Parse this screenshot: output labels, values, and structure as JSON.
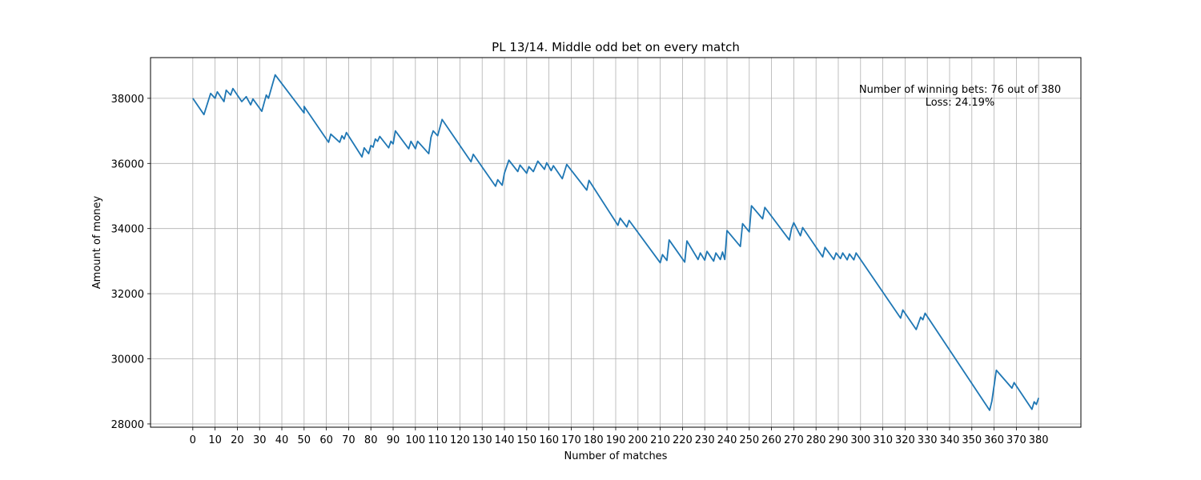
{
  "chart_data": {
    "type": "line",
    "title": "PL 13/14. Middle odd bet on every match",
    "xlabel": "Number of matches",
    "ylabel": "Amount of money",
    "xlim": [
      -19,
      399
    ],
    "ylim": [
      27900,
      39250
    ],
    "x_ticks": [
      0,
      10,
      20,
      30,
      40,
      50,
      60,
      70,
      80,
      90,
      100,
      110,
      120,
      130,
      140,
      150,
      160,
      170,
      180,
      190,
      200,
      210,
      220,
      230,
      240,
      250,
      260,
      270,
      280,
      290,
      300,
      310,
      320,
      330,
      340,
      350,
      360,
      370,
      380
    ],
    "y_ticks": [
      28000,
      30000,
      32000,
      34000,
      36000,
      38000
    ],
    "grid": true,
    "series": [
      {
        "color": "#1f77b4",
        "points": [
          [
            0,
            38000
          ],
          [
            5,
            37500
          ],
          [
            8,
            38150
          ],
          [
            10,
            38000
          ],
          [
            11,
            38200
          ],
          [
            14,
            37900
          ],
          [
            15,
            38250
          ],
          [
            17,
            38100
          ],
          [
            18,
            38300
          ],
          [
            22,
            37900
          ],
          [
            24,
            38050
          ],
          [
            26,
            37800
          ],
          [
            27,
            37980
          ],
          [
            31,
            37600
          ],
          [
            33,
            38100
          ],
          [
            34,
            38000
          ],
          [
            37,
            38720
          ],
          [
            50,
            37550
          ],
          [
            50,
            37750
          ],
          [
            61,
            36650
          ],
          [
            62,
            36900
          ],
          [
            66,
            36650
          ],
          [
            67,
            36850
          ],
          [
            68,
            36750
          ],
          [
            69,
            36950
          ],
          [
            76,
            36200
          ],
          [
            77,
            36480
          ],
          [
            79,
            36300
          ],
          [
            80,
            36550
          ],
          [
            81,
            36500
          ],
          [
            82,
            36750
          ],
          [
            83,
            36680
          ],
          [
            84,
            36830
          ],
          [
            88,
            36480
          ],
          [
            89,
            36680
          ],
          [
            90,
            36600
          ],
          [
            91,
            37000
          ],
          [
            97,
            36450
          ],
          [
            98,
            36680
          ],
          [
            100,
            36450
          ],
          [
            101,
            36680
          ],
          [
            106,
            36300
          ],
          [
            107,
            36800
          ],
          [
            108,
            37000
          ],
          [
            110,
            36850
          ],
          [
            112,
            37350
          ],
          [
            125,
            36050
          ],
          [
            126,
            36280
          ],
          [
            136,
            35300
          ],
          [
            137,
            35500
          ],
          [
            139,
            35330
          ],
          [
            140,
            35700
          ],
          [
            142,
            36100
          ],
          [
            146,
            35750
          ],
          [
            147,
            35950
          ],
          [
            150,
            35700
          ],
          [
            151,
            35900
          ],
          [
            153,
            35750
          ],
          [
            155,
            36070
          ],
          [
            158,
            35820
          ],
          [
            159,
            36020
          ],
          [
            161,
            35780
          ],
          [
            162,
            35930
          ],
          [
            166,
            35530
          ],
          [
            168,
            35970
          ],
          [
            177,
            35180
          ],
          [
            178,
            35480
          ],
          [
            191,
            34100
          ],
          [
            192,
            34320
          ],
          [
            195,
            34050
          ],
          [
            196,
            34250
          ],
          [
            210,
            32950
          ],
          [
            211,
            33200
          ],
          [
            213,
            33020
          ],
          [
            214,
            33650
          ],
          [
            221,
            32970
          ],
          [
            222,
            33620
          ],
          [
            227,
            33050
          ],
          [
            228,
            33250
          ],
          [
            230,
            33030
          ],
          [
            231,
            33300
          ],
          [
            234,
            33000
          ],
          [
            235,
            33250
          ],
          [
            237,
            33050
          ],
          [
            238,
            33280
          ],
          [
            239,
            33050
          ],
          [
            240,
            33940
          ],
          [
            246,
            33450
          ],
          [
            247,
            34150
          ],
          [
            250,
            33900
          ],
          [
            251,
            34700
          ],
          [
            256,
            34300
          ],
          [
            257,
            34650
          ],
          [
            268,
            33650
          ],
          [
            269,
            34000
          ],
          [
            270,
            34180
          ],
          [
            273,
            33780
          ],
          [
            274,
            34030
          ],
          [
            283,
            33130
          ],
          [
            284,
            33420
          ],
          [
            288,
            33050
          ],
          [
            289,
            33250
          ],
          [
            291,
            33080
          ],
          [
            292,
            33250
          ],
          [
            294,
            33040
          ],
          [
            295,
            33220
          ],
          [
            297,
            33040
          ],
          [
            298,
            33250
          ],
          [
            318,
            31250
          ],
          [
            319,
            31500
          ],
          [
            325,
            30900
          ],
          [
            327,
            31280
          ],
          [
            328,
            31200
          ],
          [
            329,
            31400
          ],
          [
            358,
            28420
          ],
          [
            359,
            28700
          ],
          [
            361,
            29650
          ],
          [
            368,
            29100
          ],
          [
            369,
            29270
          ],
          [
            377,
            28450
          ],
          [
            378,
            28680
          ],
          [
            379,
            28600
          ],
          [
            380,
            28800
          ]
        ]
      }
    ],
    "annotation": {
      "line1": "Number of winning bets: 76 out of 380",
      "line2": "Loss: 24.19%"
    }
  }
}
